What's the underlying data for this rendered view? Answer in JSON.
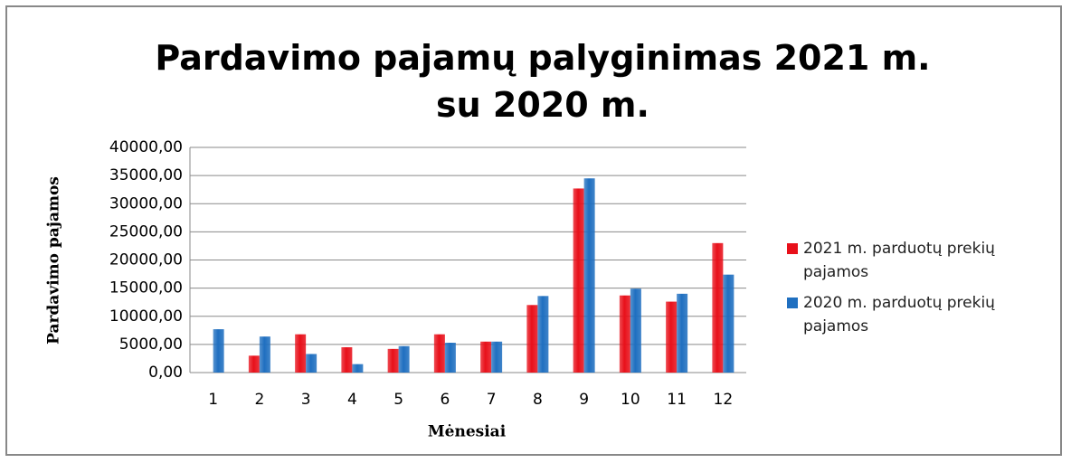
{
  "chart_data": {
    "type": "bar",
    "title": "Pardavimo pajamų palyginimas 2021 m. su 2020 m.",
    "x_label": "Mėnesiai",
    "y_label": "Pardavimo pajamos",
    "categories": [
      "1",
      "2",
      "3",
      "4",
      "5",
      "6",
      "7",
      "8",
      "9",
      "10",
      "11",
      "12"
    ],
    "series": [
      {
        "name": "2021 m. parduotų prekių pajamos",
        "color": "#e8101a",
        "values": [
          0,
          3000,
          6800,
          4500,
          4200,
          6800,
          5500,
          12000,
          32700,
          13700,
          12600,
          23000
        ]
      },
      {
        "name": "2020 m. parduotų prekių pajamos",
        "color": "#1f6fc0",
        "values": [
          7700,
          6400,
          3300,
          1500,
          4700,
          5300,
          5500,
          13600,
          34500,
          14900,
          14000,
          17400
        ]
      }
    ],
    "ylim": [
      0,
      40000
    ],
    "yticks": [
      {
        "value": 0,
        "label": "0,00"
      },
      {
        "value": 5000,
        "label": "5000,00"
      },
      {
        "value": 10000,
        "label": "10000,00"
      },
      {
        "value": 15000,
        "label": "15000,00"
      },
      {
        "value": 20000,
        "label": "20000,00"
      },
      {
        "value": 25000,
        "label": "25000,00"
      },
      {
        "value": 30000,
        "label": "30000,00"
      },
      {
        "value": 35000,
        "label": "35000,00"
      },
      {
        "value": 40000,
        "label": "40000,00"
      }
    ],
    "grid": true,
    "legend": "right"
  }
}
